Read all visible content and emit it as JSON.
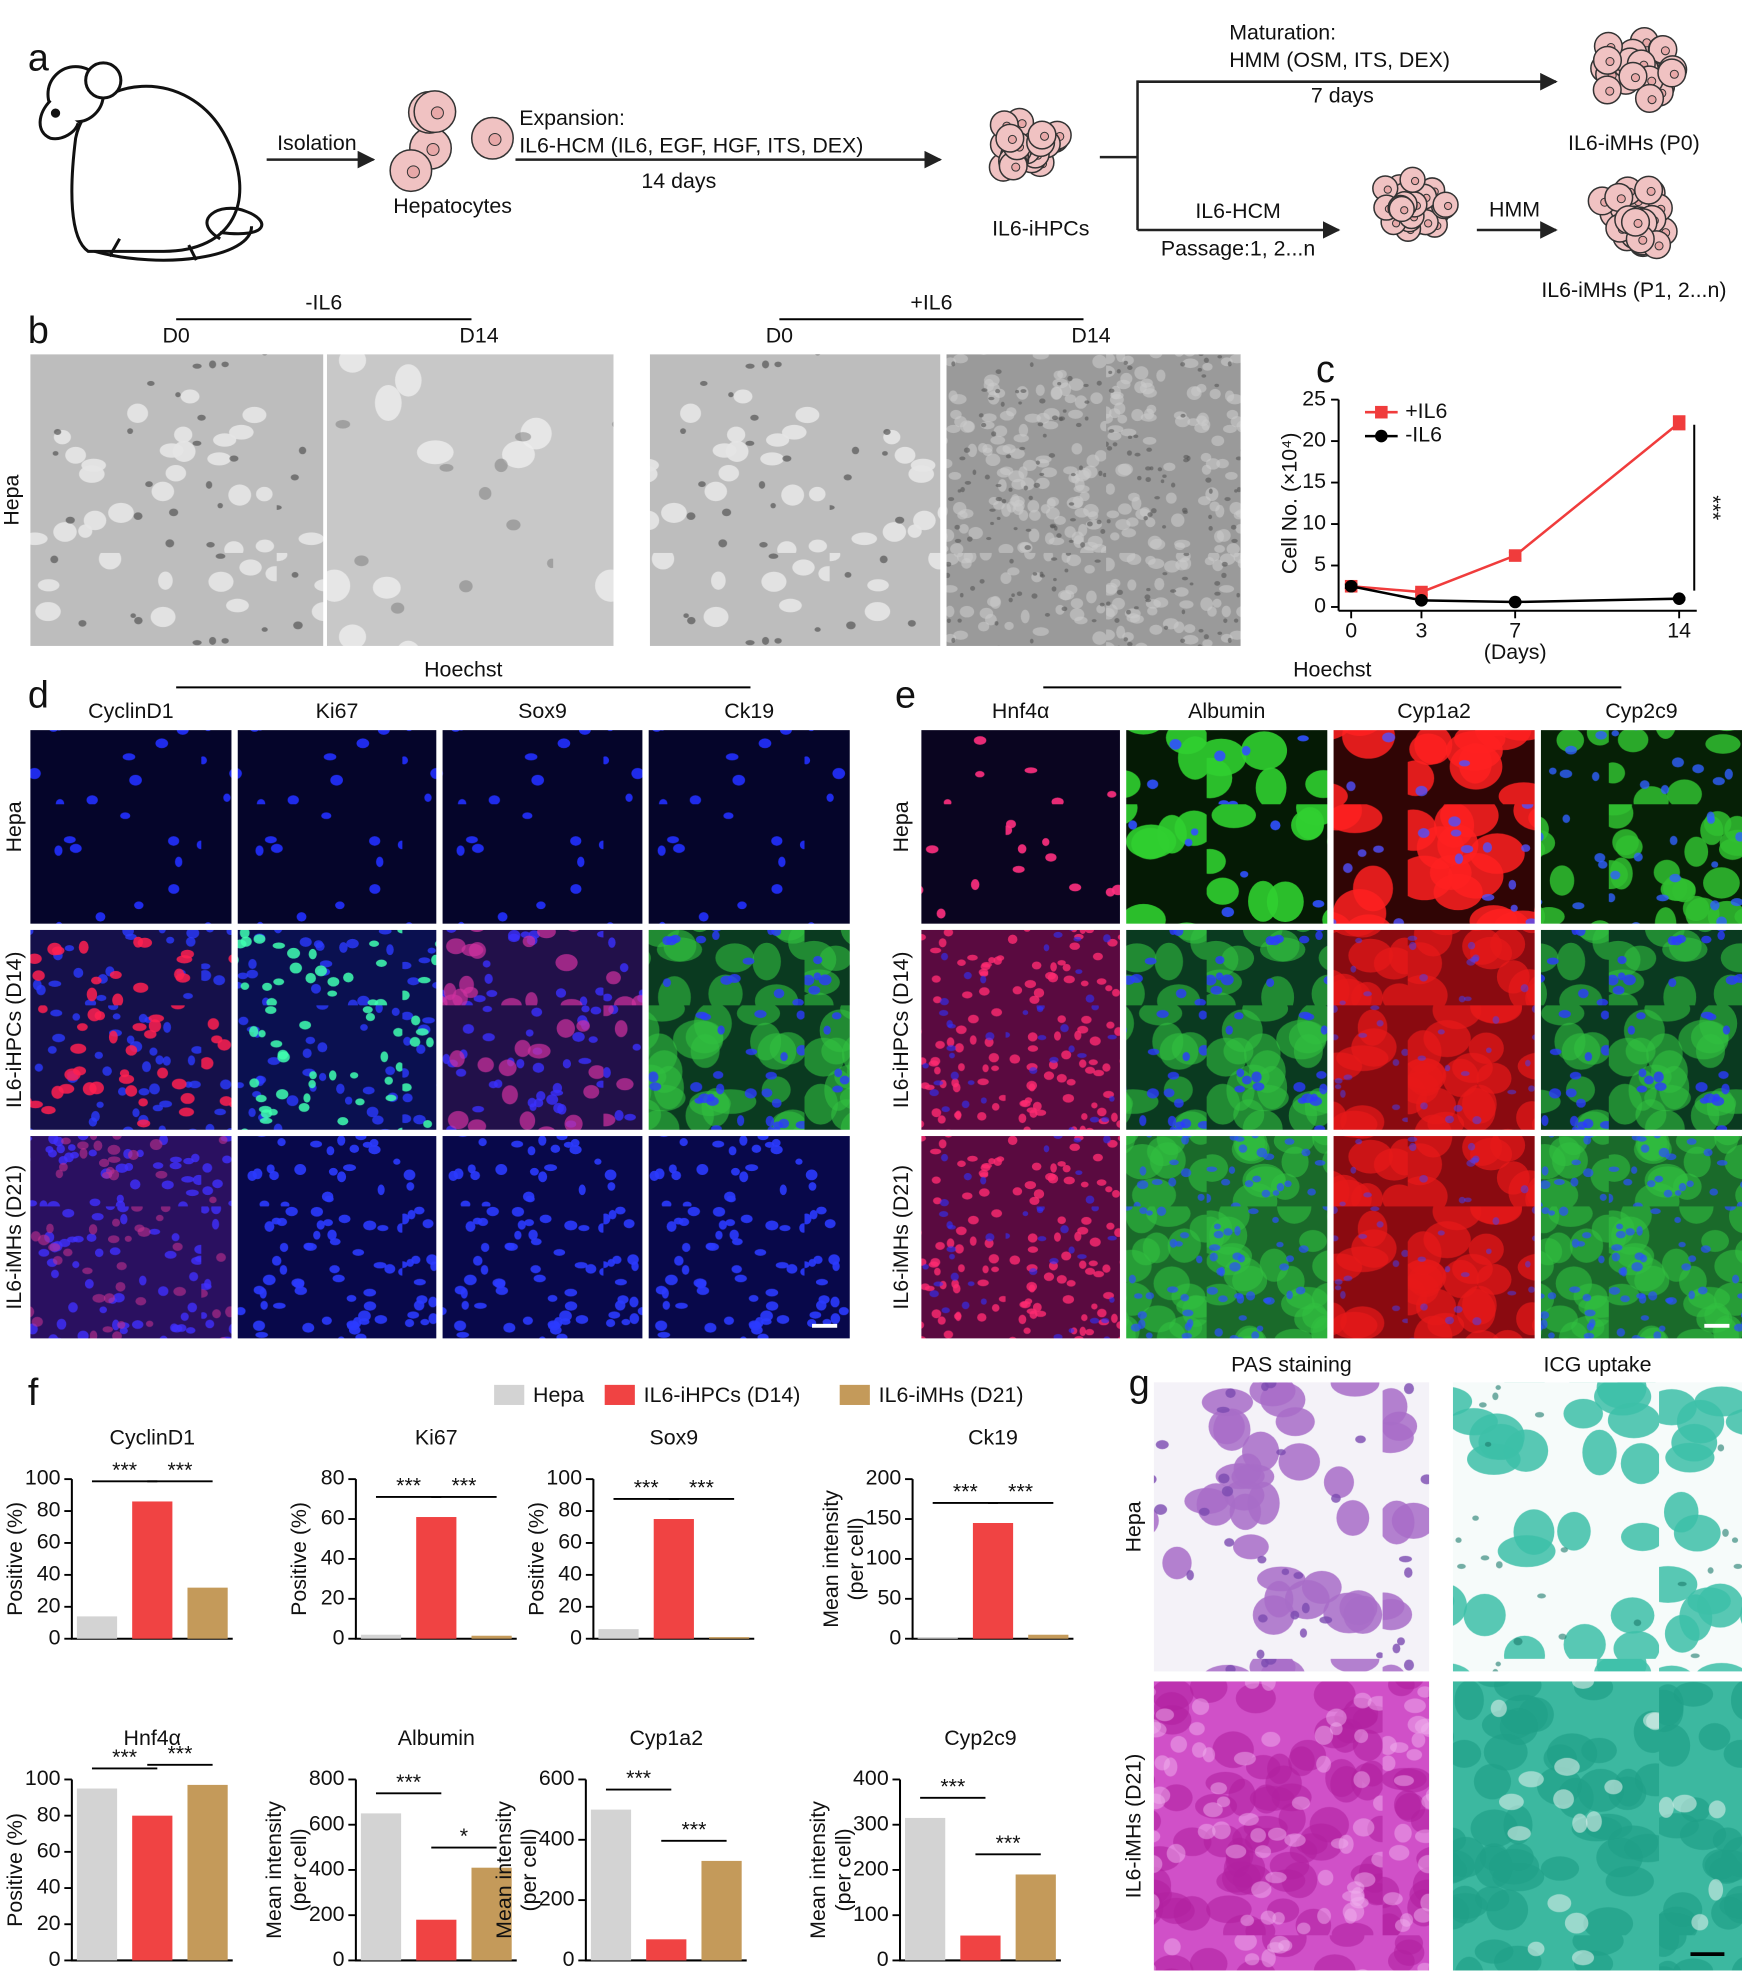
{
  "panel_labels": [
    "a",
    "b",
    "c",
    "d",
    "e",
    "f",
    "g"
  ],
  "diagram": {
    "isolation": "Isolation",
    "hepatocytes": "Hepatocytes",
    "expansion": "Expansion:",
    "expansion_medium": "IL6-HCM (IL6, EGF, HGF, ITS, DEX)",
    "expansion_time": "14 days",
    "ihpcs": "IL6-iHPCs",
    "maturation": "Maturation:",
    "maturation_medium": "HMM (OSM, ITS, DEX)",
    "maturation_time": "7 days",
    "imhs_p0": "IL6-iMHs (P0)",
    "passage_medium": "IL6-HCM",
    "passage": "Passage:1, 2...n",
    "hmm": "HMM",
    "imhs_pn": "IL6-iMHs (P1, 2...n)"
  },
  "panel_b": {
    "groups": [
      {
        "title": "-IL6",
        "days": [
          "D0",
          "D14"
        ]
      },
      {
        "title": "+IL6",
        "days": [
          "D0",
          "D14"
        ]
      }
    ],
    "row": "Hepa"
  },
  "panel_d": {
    "stain": "Hoechst",
    "channels": [
      "CyclinD1",
      "Ki67",
      "Sox9",
      "Ck19"
    ],
    "rows": [
      "Hepa",
      "IL6-iHPCs (D14)",
      "IL6-iMHs (D21)"
    ]
  },
  "panel_e": {
    "stain": "Hoechst",
    "channels": [
      "Hnf4α",
      "Albumin",
      "Cyp1a2",
      "Cyp2c9"
    ],
    "rows": [
      "Hepa",
      "IL6-iHPCs (D14)",
      "IL6-iMHs (D21)"
    ]
  },
  "panel_g": {
    "columns": [
      "PAS staining",
      "ICG uptake"
    ],
    "rows": [
      "Hepa",
      "IL6-iMHs (D21)"
    ]
  },
  "chart_data": [
    {
      "type": "line",
      "x": [
        0,
        3,
        7,
        14
      ],
      "xlim": [
        0,
        14
      ],
      "xticks": [
        0,
        3,
        7,
        14
      ],
      "ylim": [
        0,
        25
      ],
      "yticks": [
        0,
        5,
        10,
        15,
        20,
        25
      ],
      "xlabel": "(Days)",
      "ylabel": "Cell No. (×10⁴)",
      "annotation": "***",
      "series": [
        {
          "name": "+IL6",
          "color": "#f03c3c",
          "marker": "square",
          "values": [
            2.5,
            1.8,
            6.2,
            22.2
          ],
          "errors": [
            0.3,
            0.3,
            0.4,
            0.8
          ]
        },
        {
          "name": "-IL6",
          "color": "#000000",
          "marker": "circle",
          "values": [
            2.5,
            0.8,
            0.6,
            1.0
          ],
          "errors": [
            0.2,
            0.1,
            0.1,
            0.1
          ]
        }
      ]
    },
    {
      "type": "bar",
      "title": "CyclinD1",
      "categories": [
        "Hepa",
        "IL6-iHPCs (D14)",
        "IL6-iMHs (D21)"
      ],
      "colors": [
        "#d3d3d3",
        "#f04343",
        "#c49a5a"
      ],
      "values": [
        14,
        86,
        32
      ],
      "ylim": [
        0,
        100
      ],
      "yticks": [
        0,
        20,
        40,
        60,
        80,
        100
      ],
      "ylabel": [
        "Positive (%)"
      ],
      "comparisons": [
        {
          "pair": [
            "Hepa",
            "IL6-iHPCs (D14)"
          ],
          "label": "***"
        },
        {
          "pair": [
            "IL6-iHPCs (D14)",
            "IL6-iMHs (D21)"
          ],
          "label": "***"
        }
      ]
    },
    {
      "type": "bar",
      "title": "Ki67",
      "categories": [
        "Hepa",
        "IL6-iHPCs (D14)",
        "IL6-iMHs (D21)"
      ],
      "colors": [
        "#d3d3d3",
        "#f04343",
        "#c49a5a"
      ],
      "values": [
        2,
        61,
        1.5
      ],
      "ylim": [
        0,
        80
      ],
      "yticks": [
        0,
        20,
        40,
        60,
        80
      ],
      "ylabel": [
        "Positive (%)"
      ],
      "comparisons": [
        {
          "pair": [
            "Hepa",
            "IL6-iHPCs (D14)"
          ],
          "label": "***"
        },
        {
          "pair": [
            "IL6-iHPCs (D14)",
            "IL6-iMHs (D21)"
          ],
          "label": "***"
        }
      ]
    },
    {
      "type": "bar",
      "title": "Sox9",
      "categories": [
        "Hepa",
        "IL6-iHPCs (D14)",
        "IL6-iMHs (D21)"
      ],
      "colors": [
        "#d3d3d3",
        "#f04343",
        "#c49a5a"
      ],
      "values": [
        6,
        75,
        1
      ],
      "ylim": [
        0,
        100
      ],
      "yticks": [
        0,
        20,
        40,
        60,
        80,
        100
      ],
      "ylabel": [
        "Positive (%)"
      ],
      "comparisons": [
        {
          "pair": [
            "Hepa",
            "IL6-iHPCs (D14)"
          ],
          "label": "***"
        },
        {
          "pair": [
            "IL6-iHPCs (D14)",
            "IL6-iMHs (D21)"
          ],
          "label": "***"
        }
      ]
    },
    {
      "type": "bar",
      "title": "Ck19",
      "categories": [
        "Hepa",
        "IL6-iHPCs (D14)",
        "IL6-iMHs (D21)"
      ],
      "colors": [
        "#d3d3d3",
        "#f04343",
        "#c49a5a"
      ],
      "values": [
        2,
        145,
        5
      ],
      "ylim": [
        0,
        200
      ],
      "yticks": [
        0,
        50,
        100,
        150,
        200
      ],
      "ylabel": [
        "Mean intensity",
        "(per cell)"
      ],
      "comparisons": [
        {
          "pair": [
            "Hepa",
            "IL6-iHPCs (D14)"
          ],
          "label": "***"
        },
        {
          "pair": [
            "IL6-iHPCs (D14)",
            "IL6-iMHs (D21)"
          ],
          "label": "***"
        }
      ]
    },
    {
      "type": "bar",
      "title": "Hnf4α",
      "categories": [
        "Hepa",
        "IL6-iHPCs (D14)",
        "IL6-iMHs (D21)"
      ],
      "colors": [
        "#d3d3d3",
        "#f04343",
        "#c49a5a"
      ],
      "values": [
        95,
        80,
        97
      ],
      "ylim": [
        0,
        100
      ],
      "yticks": [
        0,
        20,
        40,
        60,
        80,
        100
      ],
      "ylabel": [
        "Positive (%)"
      ],
      "comparisons": [
        {
          "pair": [
            "Hepa",
            "IL6-iHPCs (D14)"
          ],
          "label": "***"
        },
        {
          "pair": [
            "IL6-iHPCs (D14)",
            "IL6-iMHs (D21)"
          ],
          "label": "***"
        }
      ]
    },
    {
      "type": "bar",
      "title": "Albumin",
      "categories": [
        "Hepa",
        "IL6-iHPCs (D14)",
        "IL6-iMHs (D21)"
      ],
      "colors": [
        "#d3d3d3",
        "#f04343",
        "#c49a5a"
      ],
      "values": [
        650,
        180,
        410
      ],
      "ylim": [
        0,
        800
      ],
      "yticks": [
        0,
        200,
        400,
        600,
        800
      ],
      "ylabel": [
        "Mean intensity",
        "(per cell)"
      ],
      "comparisons": [
        {
          "pair": [
            "Hepa",
            "IL6-iHPCs (D14)"
          ],
          "label": "***"
        },
        {
          "pair": [
            "IL6-iHPCs (D14)",
            "IL6-iMHs (D21)"
          ],
          "label": "*"
        }
      ]
    },
    {
      "type": "bar",
      "title": "Cyp1a2",
      "categories": [
        "Hepa",
        "IL6-iHPCs (D14)",
        "IL6-iMHs (D21)"
      ],
      "colors": [
        "#d3d3d3",
        "#f04343",
        "#c49a5a"
      ],
      "values": [
        500,
        70,
        330
      ],
      "ylim": [
        0,
        600
      ],
      "yticks": [
        0,
        200,
        400,
        600
      ],
      "ylabel": [
        "Mean intensity",
        "(per cell)"
      ],
      "comparisons": [
        {
          "pair": [
            "Hepa",
            "IL6-iHPCs (D14)"
          ],
          "label": "***"
        },
        {
          "pair": [
            "IL6-iHPCs (D14)",
            "IL6-iMHs (D21)"
          ],
          "label": "***"
        }
      ]
    },
    {
      "type": "bar",
      "title": "Cyp2c9",
      "categories": [
        "Hepa",
        "IL6-iHPCs (D14)",
        "IL6-iMHs (D21)"
      ],
      "colors": [
        "#d3d3d3",
        "#f04343",
        "#c49a5a"
      ],
      "values": [
        315,
        55,
        190
      ],
      "ylim": [
        0,
        400
      ],
      "yticks": [
        0,
        100,
        200,
        300,
        400
      ],
      "ylabel": [
        "Mean intensity",
        "(per cell)"
      ],
      "comparisons": [
        {
          "pair": [
            "Hepa",
            "IL6-iHPCs (D14)"
          ],
          "label": "***"
        },
        {
          "pair": [
            "IL6-iHPCs (D14)",
            "IL6-iMHs (D21)"
          ],
          "label": "***"
        }
      ]
    }
  ]
}
